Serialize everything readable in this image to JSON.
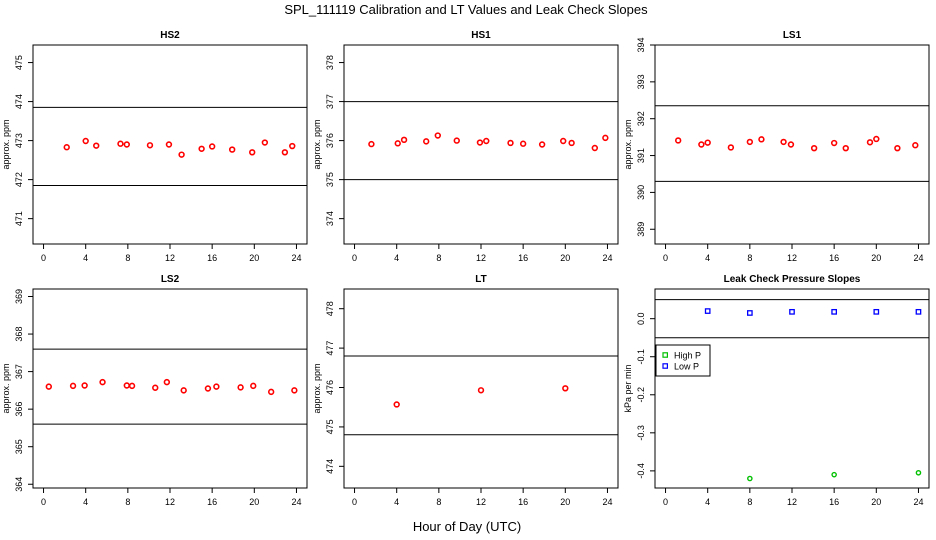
{
  "figure": {
    "title": "SPL_111119  Calibration and LT Values and Leak Check Slopes",
    "xlabel": "Hour of Day (UTC)"
  },
  "colors": {
    "red": "#ff0000",
    "green": "#00c000",
    "blue": "#0000ff",
    "axis": "#000000"
  },
  "chart_data": [
    {
      "type": "scatter",
      "title": "HS2",
      "ylabel": "approx. ppm",
      "xlim": [
        -1,
        25
      ],
      "xticks": [
        0,
        4,
        8,
        12,
        16,
        20,
        24
      ],
      "ylim": [
        470.35,
        475.45
      ],
      "yticks": [
        471,
        472,
        473,
        474,
        475
      ],
      "hlines": [
        471.85,
        473.85
      ],
      "series": [
        {
          "name": "HS2",
          "color": "red",
          "x": [
            2.2,
            4.0,
            5.0,
            7.3,
            7.9,
            10.1,
            11.9,
            13.1,
            15.0,
            16.0,
            17.9,
            19.8,
            21.0,
            22.9,
            23.6
          ],
          "y": [
            472.83,
            472.99,
            472.87,
            472.92,
            472.9,
            472.88,
            472.9,
            472.64,
            472.79,
            472.85,
            472.77,
            472.7,
            472.95,
            472.7,
            472.86
          ]
        }
      ],
      "legend": null
    },
    {
      "type": "scatter",
      "title": "HS1",
      "ylabel": "approx. ppm",
      "xlim": [
        -1,
        25
      ],
      "xticks": [
        0,
        4,
        8,
        12,
        16,
        20,
        24
      ],
      "ylim": [
        373.35,
        378.45
      ],
      "yticks": [
        374,
        375,
        376,
        377,
        378
      ],
      "hlines": [
        375.0,
        377.0
      ],
      "series": [
        {
          "name": "HS1",
          "color": "red",
          "x": [
            1.6,
            4.1,
            4.7,
            6.8,
            7.9,
            9.7,
            11.9,
            12.5,
            14.8,
            16.0,
            17.8,
            19.8,
            20.6,
            22.8,
            23.8
          ],
          "y": [
            375.91,
            375.93,
            376.02,
            375.98,
            376.13,
            376.0,
            375.95,
            375.99,
            375.94,
            375.92,
            375.9,
            375.99,
            375.94,
            375.81,
            376.07
          ]
        }
      ],
      "legend": null
    },
    {
      "type": "scatter",
      "title": "LS1",
      "ylabel": "approx. ppm",
      "xlim": [
        -1,
        25
      ],
      "xticks": [
        0,
        4,
        8,
        12,
        16,
        20,
        24
      ],
      "ylim": [
        388.6,
        394.0
      ],
      "yticks": [
        389,
        390,
        391,
        392,
        393,
        394
      ],
      "hlines": [
        390.3,
        392.35
      ],
      "series": [
        {
          "name": "LS1",
          "color": "red",
          "x": [
            1.2,
            3.4,
            4.0,
            6.2,
            8.0,
            9.1,
            11.2,
            11.9,
            14.1,
            16.0,
            17.1,
            19.4,
            20.0,
            22.0,
            23.7
          ],
          "y": [
            391.41,
            391.3,
            391.35,
            391.22,
            391.37,
            391.44,
            391.37,
            391.3,
            391.2,
            391.34,
            391.2,
            391.36,
            391.45,
            391.2,
            391.28
          ]
        }
      ],
      "legend": null
    },
    {
      "type": "scatter",
      "title": "LS2",
      "ylabel": "approx. ppm",
      "xlim": [
        -1,
        25
      ],
      "xticks": [
        0,
        4,
        8,
        12,
        16,
        20,
        24
      ],
      "ylim": [
        363.9,
        369.2
      ],
      "yticks": [
        364,
        365,
        366,
        367,
        368,
        369
      ],
      "hlines": [
        365.6,
        367.6
      ],
      "series": [
        {
          "name": "LS2",
          "color": "red",
          "x": [
            0.5,
            2.8,
            3.9,
            5.6,
            7.9,
            8.4,
            10.6,
            11.7,
            13.3,
            15.6,
            16.4,
            18.7,
            19.9,
            21.6,
            23.8
          ],
          "y": [
            366.6,
            366.62,
            366.63,
            366.72,
            366.63,
            366.62,
            366.57,
            366.72,
            366.5,
            366.55,
            366.6,
            366.58,
            366.62,
            366.46,
            366.5
          ]
        }
      ],
      "legend": null
    },
    {
      "type": "scatter",
      "title": "LT",
      "ylabel": "approx. ppm",
      "xlim": [
        -1,
        25
      ],
      "xticks": [
        0,
        4,
        8,
        12,
        16,
        20,
        24
      ],
      "ylim": [
        473.45,
        478.5
      ],
      "yticks": [
        474,
        475,
        476,
        477,
        478
      ],
      "hlines": [
        474.8,
        476.8
      ],
      "series": [
        {
          "name": "LT",
          "color": "red",
          "x": [
            4.0,
            12.0,
            20.0
          ],
          "y": [
            475.57,
            475.93,
            475.98
          ]
        }
      ],
      "legend": null
    },
    {
      "type": "scatter",
      "title": "Leak Check Pressure Slopes",
      "ylabel": "kPa per min",
      "xlim": [
        -1,
        25
      ],
      "xticks": [
        0,
        4,
        8,
        12,
        16,
        20,
        24
      ],
      "ylim": [
        -0.445,
        0.078
      ],
      "yticks": [
        -0.4,
        -0.3,
        -0.2,
        -0.1,
        0.0
      ],
      "yticklabels": [
        "-0.4",
        "-0.3",
        "-0.2",
        "-0.1",
        "0.0"
      ],
      "hlines": [
        0.05,
        -0.05
      ],
      "series": [
        {
          "name": "High P",
          "color": "green",
          "x": [
            8.0,
            16.0,
            24.0
          ],
          "y": [
            -0.42,
            -0.41,
            -0.405
          ]
        },
        {
          "name": "Low P",
          "color": "blue",
          "x": [
            4.0,
            8.0,
            12.0,
            16.0,
            20.0,
            24.0
          ],
          "y": [
            0.02,
            0.015,
            0.018,
            0.018,
            0.018,
            0.018
          ]
        }
      ],
      "legend": {
        "placement": "left",
        "entries": [
          "High P",
          "Low P"
        ]
      }
    }
  ]
}
